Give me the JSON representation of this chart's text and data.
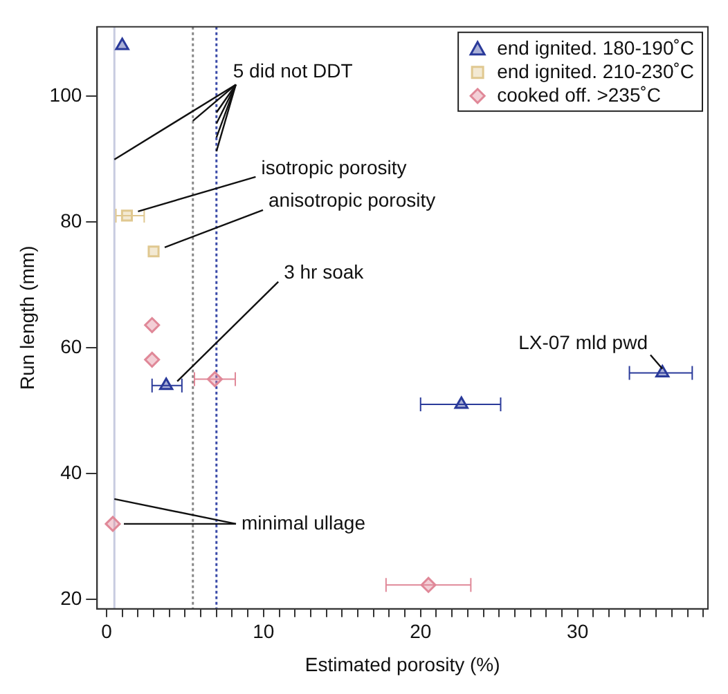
{
  "chart_data": {
    "type": "scatter",
    "xlabel": "Estimated porosity (%)",
    "ylabel": "Run length (mm)",
    "xlim": [
      -0.6,
      38.3
    ],
    "ylim": [
      18.5,
      111
    ],
    "xticks": [
      0,
      {
        "value": 1,
        "label": null
      },
      {
        "value": 2,
        "label": null
      },
      {
        "value": 3,
        "label": null
      },
      {
        "value": 4,
        "label": null
      },
      {
        "value": 5,
        "label": null
      },
      {
        "value": 6,
        "label": null
      },
      {
        "value": 7,
        "label": null
      },
      {
        "value": 8,
        "label": null
      },
      {
        "value": 9,
        "label": null
      },
      10,
      {
        "value": 11,
        "label": null
      },
      {
        "value": 12,
        "label": null
      },
      {
        "value": 13,
        "label": null
      },
      {
        "value": 14,
        "label": null
      },
      {
        "value": 15,
        "label": null
      },
      {
        "value": 16,
        "label": null
      },
      {
        "value": 17,
        "label": null
      },
      {
        "value": 18,
        "label": null
      },
      {
        "value": 19,
        "label": null
      },
      20,
      {
        "value": 21,
        "label": null
      },
      {
        "value": 22,
        "label": null
      },
      {
        "value": 23,
        "label": null
      },
      {
        "value": 24,
        "label": null
      },
      {
        "value": 25,
        "label": null
      },
      {
        "value": 26,
        "label": null
      },
      {
        "value": 27,
        "label": null
      },
      {
        "value": 28,
        "label": null
      },
      {
        "value": 29,
        "label": null
      },
      30,
      {
        "value": 31,
        "label": null
      },
      {
        "value": 32,
        "label": null
      },
      {
        "value": 33,
        "label": null
      },
      {
        "value": 34,
        "label": null
      },
      {
        "value": 35,
        "label": null
      },
      {
        "value": 36,
        "label": null
      },
      {
        "value": 37,
        "label": null
      },
      {
        "value": 38,
        "label": null
      }
    ],
    "yticks": [
      20,
      40,
      60,
      80,
      100
    ],
    "grid": false,
    "legend": "top right",
    "series": [
      {
        "name": "end ignited. 180-190˚C",
        "color": "#2a3a9a",
        "marker": "triangle",
        "x": [
          1.0,
          3.8,
          22.6,
          35.4
        ],
        "values": [
          108,
          54,
          51,
          56
        ],
        "xerrors": [
          null,
          [
            2.9,
            4.8
          ],
          [
            20.0,
            25.1
          ],
          [
            33.3,
            37.3
          ]
        ]
      },
      {
        "name": "end ignited. 210-230˚C",
        "color": "#e0c890",
        "marker": "square",
        "x": [
          1.3,
          3.0
        ],
        "values": [
          81,
          75.3
        ],
        "xerrors": [
          [
            0.6,
            2.4
          ],
          null
        ]
      },
      {
        "name": "cooked off. >235˚C",
        "color": "#e08898",
        "marker": "diamond",
        "x": [
          2.9,
          2.9,
          6.9,
          0.4,
          20.5
        ],
        "values": [
          63.6,
          58.1,
          55,
          32,
          22.3
        ],
        "xerrors": [
          null,
          null,
          [
            5.6,
            8.2
          ],
          null,
          [
            17.8,
            23.2
          ]
        ]
      }
    ],
    "ref_lines": [
      {
        "axis": "x",
        "value": 0.5,
        "color": "#c8cce0",
        "line_style": "solid"
      },
      {
        "axis": "x",
        "value": 5.5,
        "color": "#888888",
        "line_style": "dotted"
      },
      {
        "axis": "x",
        "value": 7,
        "color": "#3a4aa8",
        "line_style": "dotted"
      }
    ],
    "annotations": [
      {
        "text": "5 did not DDT",
        "x": 7,
        "y": 95
      },
      {
        "text": "isotropic porosity",
        "x": 1.3,
        "y": 81
      },
      {
        "text": "anisotropic porosity",
        "x": 3.0,
        "y": 75.3
      },
      {
        "text": "3 hr soak",
        "x": 3.8,
        "y": 54
      },
      {
        "text": "LX-07 mld pwd",
        "x": 35.4,
        "y": 56
      },
      {
        "text": "minimal ullage",
        "x": 0.4,
        "y": 32
      }
    ]
  }
}
